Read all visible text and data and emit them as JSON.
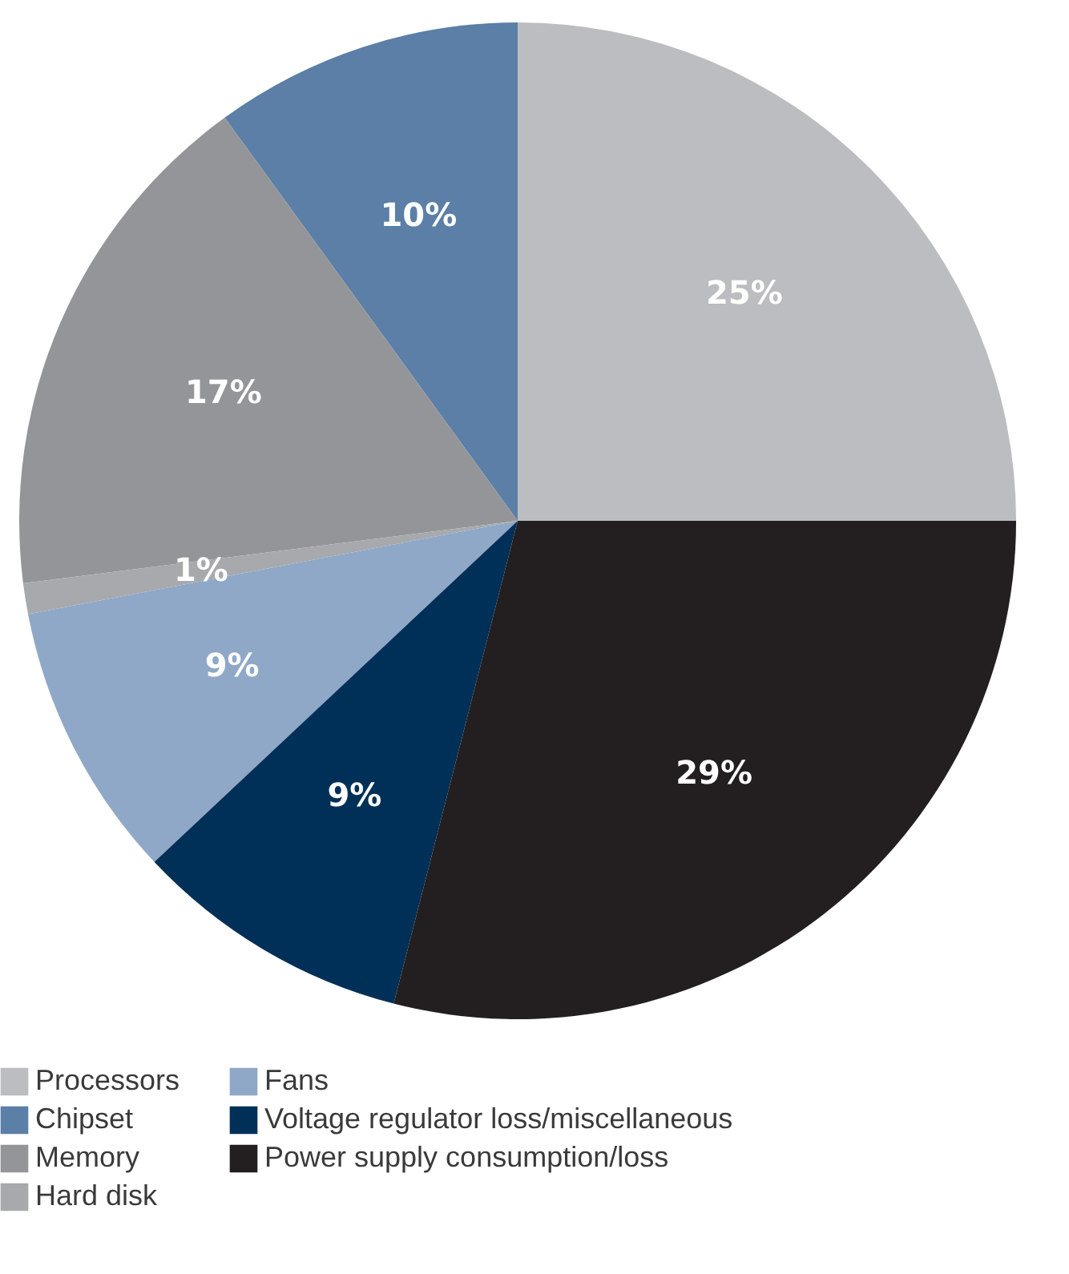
{
  "chart_data": {
    "type": "pie",
    "categories": [
      "Processors",
      "Chipset",
      "Memory",
      "Hard disk",
      "Fans",
      "Voltage regulator loss/miscellaneous",
      "Power supply consumption/loss"
    ],
    "values": [
      25,
      10,
      17,
      1,
      9,
      9,
      29
    ],
    "colors": [
      "#bcbdc0",
      "#5b7fa6",
      "#939598",
      "#a7a9ac",
      "#8fa8c8",
      "#003057",
      "#231f20"
    ],
    "value_labels": [
      "25%",
      "10%",
      "17%",
      "1%",
      "9%",
      "9%",
      "29%"
    ],
    "legend": "bottom"
  }
}
